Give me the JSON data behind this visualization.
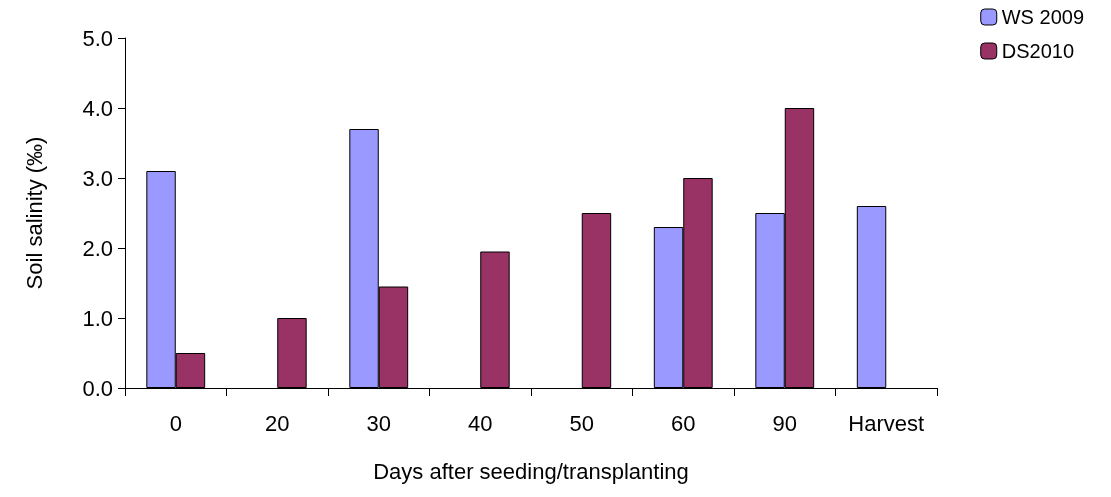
{
  "chart_data": {
    "type": "bar",
    "xlabel": "Days after seeding/transplanting",
    "ylabel": "Soil salinity (‰)",
    "categories": [
      "0",
      "20",
      "30",
      "40",
      "50",
      "60",
      "90",
      "Harvest"
    ],
    "series": [
      {
        "name": "WS 2009",
        "color": "#9999ff",
        "values": [
          3.1,
          null,
          3.7,
          null,
          null,
          2.3,
          2.5,
          2.6
        ]
      },
      {
        "name": "DS2010",
        "color": "#993366",
        "values": [
          0.5,
          1.0,
          1.45,
          1.95,
          2.5,
          3.0,
          4.0,
          null
        ]
      }
    ],
    "ylim": [
      0,
      5
    ],
    "yticks": [
      {
        "value": 0,
        "label": "0.0"
      },
      {
        "value": 1,
        "label": "1.0"
      },
      {
        "value": 2,
        "label": "2.0"
      },
      {
        "value": 3,
        "label": "3.0"
      },
      {
        "value": 4,
        "label": "4.0"
      },
      {
        "value": 5,
        "label": "5.0"
      }
    ],
    "grid": false,
    "legend": "top right"
  }
}
